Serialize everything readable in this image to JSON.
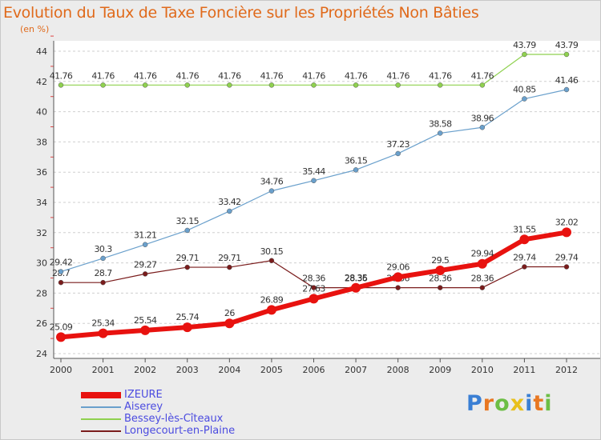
{
  "header": {
    "title": "Evolution du Taux de Taxe Foncière sur les Propriétés Non Bâties",
    "subtitle": "(en %)"
  },
  "logo": {
    "letters": [
      "P",
      "r",
      "o",
      "x",
      "i",
      "t",
      "i"
    ],
    "colors": [
      "#3a7fd4",
      "#e87722",
      "#6cbe45",
      "#e8c01b",
      "#3a7fd4",
      "#e87722",
      "#6cbe45"
    ]
  },
  "chart_data": {
    "type": "line",
    "title": "Evolution du Taux de Taxe Foncière sur les Propriétés Non Bâties",
    "ylabel": "(en %)",
    "x": [
      "2000",
      "2001",
      "2002",
      "2003",
      "2004",
      "2005",
      "2006",
      "2007",
      "2008",
      "2009",
      "2010",
      "2011",
      "2012"
    ],
    "ylim": [
      24,
      44
    ],
    "yticks": [
      24,
      26,
      28,
      30,
      32,
      34,
      36,
      38,
      40,
      42,
      44
    ],
    "grid": "horizontal dashed",
    "legend_position": "bottom-left",
    "series": [
      {
        "name": "Longecourt-en-Plaine",
        "color": "#7a1c1c",
        "width": 1.2,
        "marker": 3,
        "values": [
          28.7,
          28.7,
          29.27,
          29.71,
          29.71,
          30.15,
          28.36,
          28.36,
          28.36,
          28.36,
          28.36,
          29.74,
          29.74
        ],
        "labels": [
          "28.7",
          "28.7",
          "29.27",
          "29.71",
          "29.71",
          "30.15",
          "28.36",
          "28.36",
          "28.36",
          "28.36",
          "28.36",
          "29.74",
          "29.74"
        ]
      },
      {
        "name": "Bessey-lès-Cîteaux",
        "color": "#8fd14f",
        "width": 1.2,
        "marker": 3,
        "values": [
          41.76,
          41.76,
          41.76,
          41.76,
          41.76,
          41.76,
          41.76,
          41.76,
          41.76,
          41.76,
          41.76,
          43.79,
          43.79
        ],
        "labels": [
          "41.76",
          "41.76",
          "41.76",
          "41.76",
          "41.76",
          "41.76",
          "41.76",
          "41.76",
          "41.76",
          "41.76",
          "41.76",
          "43.79",
          "43.79"
        ]
      },
      {
        "name": "Aiserey",
        "color": "#6aa0cc",
        "width": 1.2,
        "marker": 3,
        "values": [
          29.42,
          30.3,
          31.21,
          32.15,
          33.42,
          34.76,
          35.44,
          36.15,
          37.23,
          38.58,
          38.96,
          40.85,
          41.46
        ],
        "labels": [
          "29.42",
          "30.3",
          "31.21",
          "32.15",
          "33.42",
          "34.76",
          "35.44",
          "36.15",
          "37.23",
          "38.58",
          "38.96",
          "40.85",
          "41.46"
        ]
      },
      {
        "name": "IZEURE",
        "color": "#e8120f",
        "width": 6,
        "marker": 6,
        "values": [
          25.09,
          25.34,
          25.54,
          25.74,
          26.0,
          26.89,
          27.63,
          28.35,
          29.06,
          29.5,
          29.94,
          31.55,
          32.02
        ],
        "labels": [
          "25.09",
          "25.34",
          "25.54",
          "25.74",
          "26",
          "26.89",
          "27.63",
          "28.35",
          "29.06",
          "29.5",
          "29.94",
          "31.55",
          "32.02"
        ]
      }
    ],
    "legend_order": [
      "IZEURE",
      "Aiserey",
      "Bessey-lès-Cîteaux",
      "Longecourt-en-Plaine"
    ]
  }
}
